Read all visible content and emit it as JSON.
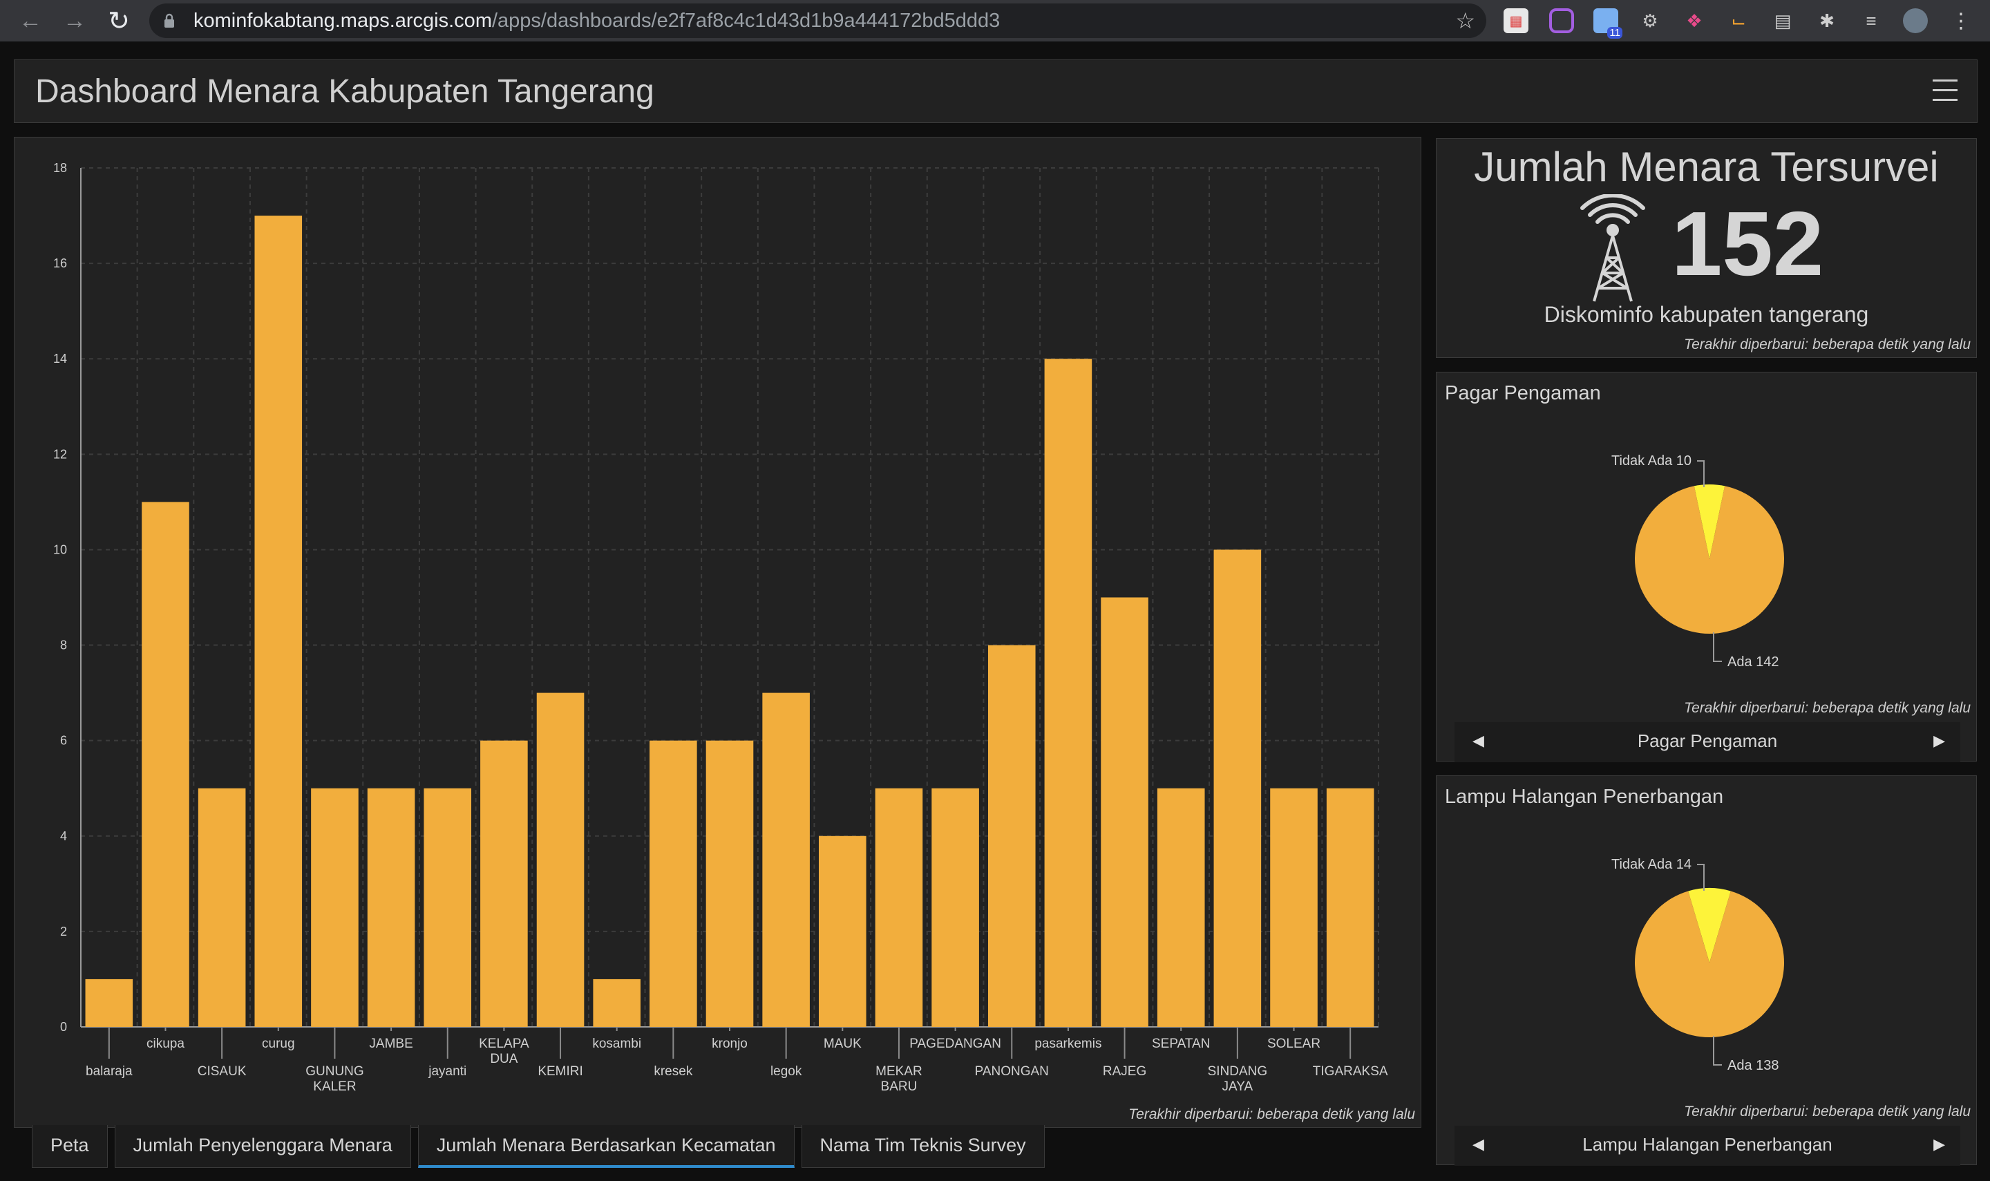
{
  "browser": {
    "url_host": "kominfokabtang.maps.arcgis.com",
    "url_path": "/apps/dashboards/e2f7af8c4c1d43d1b9a444172bd5ddd3",
    "extension_badge": "11"
  },
  "header": {
    "title": "Dashboard Menara Kabupaten Tangerang"
  },
  "chart_panel": {
    "last_updated": "Terakhir diperbarui: beberapa detik yang lalu"
  },
  "chart_data": {
    "type": "bar",
    "categories": [
      "balaraja",
      "cikupa",
      "CISAUK",
      "curug",
      "GUNUNG KALER",
      "JAMBE",
      "jayanti",
      "KELAPA DUA",
      "KEMIRI",
      "kosambi",
      "kresek",
      "kronjo",
      "legok",
      "MAUK",
      "MEKAR BARU",
      "PAGEDANGAN",
      "PANONGAN",
      "pasarkemis",
      "RAJEG",
      "SEPATAN",
      "SINDANG JAYA",
      "SOLEAR",
      "TIGARAKSA"
    ],
    "values": [
      1,
      11,
      5,
      17,
      5,
      5,
      5,
      6,
      7,
      1,
      6,
      6,
      7,
      4,
      5,
      5,
      8,
      14,
      9,
      5,
      10,
      5,
      5
    ],
    "title": "",
    "xlabel": "",
    "ylabel": "",
    "ylim": [
      0,
      18
    ],
    "yticks": [
      0,
      2,
      4,
      6,
      8,
      10,
      12,
      14,
      16,
      18
    ],
    "grid": true,
    "bar_color": "#f2ae3d"
  },
  "tabs": [
    {
      "label": "Peta"
    },
    {
      "label": "Jumlah Penyelenggara Menara"
    },
    {
      "label": "Jumlah Menara Berdasarkan Kecamatan"
    },
    {
      "label": "Nama Tim Teknis Survey"
    }
  ],
  "indicator": {
    "title": "Jumlah Menara Tersurvei",
    "value": "152",
    "subtitle": "Diskominfo kabupaten tangerang",
    "last_updated": "Terakhir diperbarui: beberapa detik yang lalu",
    "icon": "tower-icon"
  },
  "pie_pagar": {
    "title": "Pagar Pengaman",
    "nav_label": "Pagar Pengaman",
    "last_updated": "Terakhir diperbarui: beberapa detik yang lalu",
    "label_minor": "Tidak Ada 10",
    "label_major": "Ada 142",
    "chart_data": {
      "type": "pie",
      "slices": [
        {
          "label": "Ada",
          "value": 142,
          "color": "#f2ae3d"
        },
        {
          "label": "Tidak Ada",
          "value": 10,
          "color": "#fdf33a"
        }
      ]
    }
  },
  "pie_lampu": {
    "title": "Lampu Halangan Penerbangan",
    "nav_label": "Lampu Halangan Penerbangan",
    "last_updated": "Terakhir diperbarui: beberapa detik yang lalu",
    "label_minor": "Tidak Ada 14",
    "label_major": "Ada 138",
    "chart_data": {
      "type": "pie",
      "slices": [
        {
          "label": "Ada",
          "value": 138,
          "color": "#f2ae3d"
        },
        {
          "label": "Tidak Ada",
          "value": 14,
          "color": "#fdf33a"
        }
      ]
    }
  }
}
